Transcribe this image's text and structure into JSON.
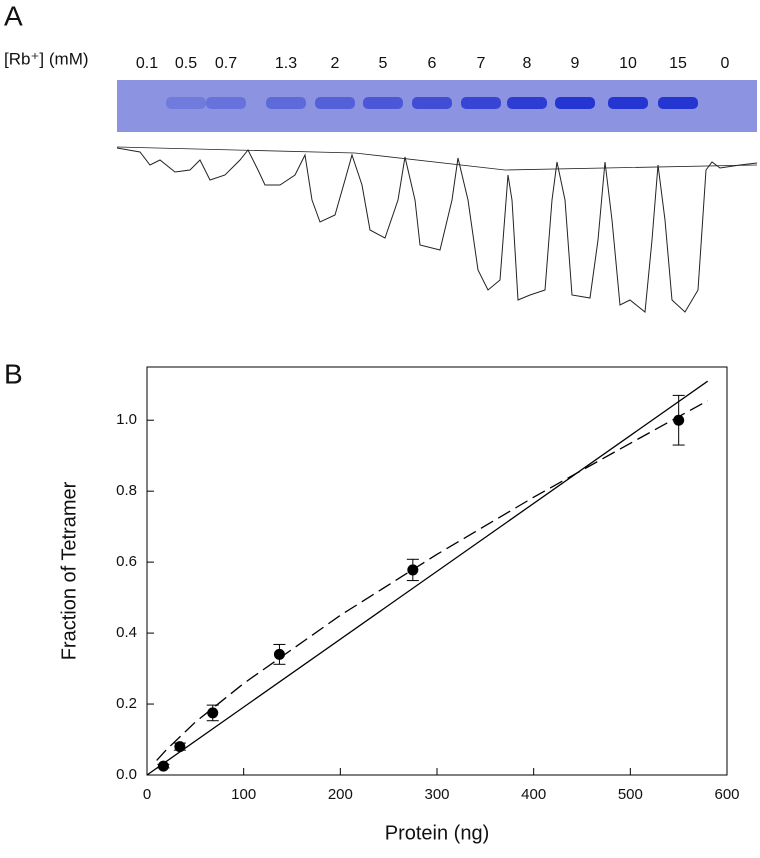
{
  "panel_a": {
    "label": "A",
    "lane_axis_label": "[Rb⁺] (mM)",
    "lanes": [
      "0.1",
      "0.5",
      "0.7",
      "1.3",
      "2",
      "5",
      "6",
      "7",
      "8",
      "9",
      "10",
      "15",
      "0"
    ]
  },
  "chart_data": {
    "type": "scatter",
    "panel_label": "B",
    "x_label": "Protein (ng)",
    "y_label": "Fraction of Tetramer",
    "xlim": [
      0,
      600
    ],
    "ylim": [
      0,
      1.15
    ],
    "xticks": [
      0,
      100,
      200,
      300,
      400,
      500,
      600
    ],
    "yticks": [
      {
        "value": 0,
        "label": "0.0"
      },
      0.2,
      0.4,
      0.6,
      0.8,
      {
        "value": 1,
        "label": "1.0"
      }
    ],
    "series": [
      {
        "kind": "points",
        "color": "#000000",
        "x": [
          17,
          34,
          68,
          137,
          275,
          550
        ],
        "values": [
          0.025,
          0.08,
          0.175,
          0.34,
          0.578,
          1.0
        ],
        "errors": [
          0.005,
          0.01,
          0.022,
          0.028,
          0.03,
          0.07
        ]
      },
      {
        "kind": "line",
        "style": "solid",
        "color": "#000000",
        "x": [
          0,
          580
        ],
        "values": [
          0,
          1.11
        ]
      },
      {
        "kind": "line",
        "style": "dashed",
        "color": "#000000",
        "x": [
          10,
          20,
          50,
          100,
          200,
          300,
          400,
          500,
          580
        ],
        "values": [
          0.041,
          0.071,
          0.149,
          0.258,
          0.45,
          0.622,
          0.783,
          0.935,
          1.055
        ]
      }
    ]
  }
}
